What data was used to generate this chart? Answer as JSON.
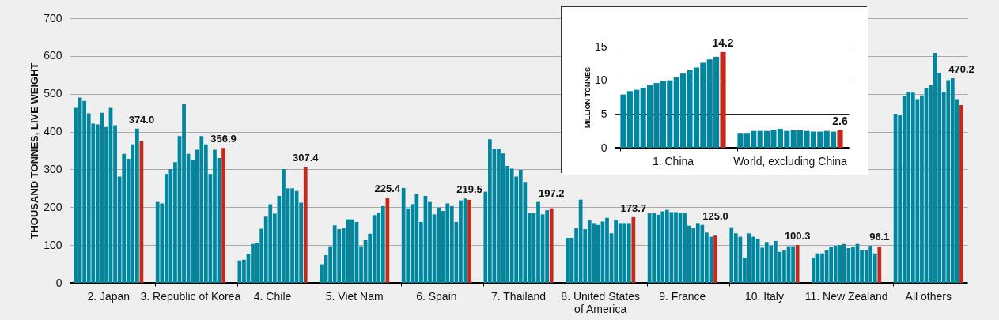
{
  "chart_data": [
    {
      "type": "bar",
      "ylabel": "THOUSAND TONNES, LIVE WEIGHT",
      "categories": [
        "2. Japan",
        "3. Republic of Korea",
        "4. Chile",
        "5. Viet Nam",
        "6. Spain",
        "7. Thailand",
        "8. United States of America",
        "9. France",
        "10. Italy",
        "11. New Zealand",
        "All others"
      ],
      "ylim": [
        0,
        700
      ],
      "yticks": [
        0,
        100,
        200,
        300,
        400,
        500,
        600,
        700
      ],
      "grid": "y",
      "series": [
        {
          "color": "#00869e",
          "values": [
            463,
            214,
            59,
            49,
            251,
            241,
            119,
            184,
            147,
            67,
            447
          ]
        },
        {
          "color": "#00869e",
          "values": [
            490,
            210,
            61,
            73,
            197,
            380,
            119,
            184,
            131,
            78,
            443
          ]
        },
        {
          "color": "#00869e",
          "values": [
            481,
            288,
            77,
            97,
            208,
            354,
            144,
            180,
            122,
            78,
            494
          ]
        },
        {
          "color": "#00869e",
          "values": [
            448,
            301,
            103,
            152,
            234,
            354,
            220,
            189,
            67,
            86,
            505
          ]
        },
        {
          "color": "#00869e",
          "values": [
            421,
            319,
            106,
            142,
            161,
            342,
            142,
            193,
            131,
            96,
            503
          ]
        },
        {
          "color": "#00869e",
          "values": [
            419,
            388,
            143,
            144,
            230,
            309,
            165,
            187,
            122,
            98,
            486
          ]
        },
        {
          "color": "#00869e",
          "values": [
            450,
            472,
            175,
            168,
            214,
            302,
            158,
            187,
            117,
            100,
            496
          ]
        },
        {
          "color": "#00869e",
          "values": [
            412,
            341,
            208,
            168,
            181,
            281,
            153,
            184,
            93,
            103,
            514
          ]
        },
        {
          "color": "#00869e",
          "values": [
            463,
            326,
            183,
            161,
            199,
            299,
            162,
            184,
            108,
            92,
            523
          ]
        },
        {
          "color": "#00869e",
          "values": [
            417,
            352,
            230,
            97,
            190,
            267,
            172,
            151,
            99,
            96,
            608
          ]
        },
        {
          "color": "#00869e",
          "values": [
            281,
            388,
            301,
            113,
            210,
            184,
            131,
            144,
            111,
            103,
            556
          ]
        },
        {
          "color": "#00869e",
          "values": [
            341,
            366,
            250,
            130,
            203,
            184,
            167,
            158,
            82,
            87,
            505
          ]
        },
        {
          "color": "#00869e",
          "values": [
            328,
            288,
            250,
            179,
            161,
            214,
            158,
            153,
            86,
            86,
            536
          ]
        },
        {
          "color": "#00869e",
          "values": [
            366,
            352,
            243,
            186,
            218,
            181,
            158,
            133,
            97,
            98,
            541
          ]
        },
        {
          "color": "#00869e",
          "values": [
            408,
            330,
            212,
            203,
            223,
            192,
            158,
            122,
            97,
            78,
            486
          ]
        },
        {
          "color": "#c4291c",
          "values": [
            374.0,
            356.9,
            307.4,
            225.4,
            219.5,
            197.2,
            173.7,
            125.0,
            100.3,
            96.1,
            470.2
          ],
          "value_labels": [
            "374.0",
            "356.9",
            "307.4",
            "225.4",
            "219.5",
            "197.2",
            "173.7",
            "125.0",
            "100.3",
            "96.1",
            "470.2"
          ]
        }
      ]
    },
    {
      "type": "bar",
      "ylabel": "MILLION TONNES",
      "categories": [
        "1. China",
        "World, excluding China"
      ],
      "ylim": [
        0,
        15
      ],
      "yticks": [
        0,
        5,
        10,
        15
      ],
      "grid": "y",
      "series": [
        {
          "color": "#00869e",
          "values": [
            7.9,
            2.2
          ]
        },
        {
          "color": "#00869e",
          "values": [
            8.4,
            2.2
          ]
        },
        {
          "color": "#00869e",
          "values": [
            8.6,
            2.5
          ]
        },
        {
          "color": "#00869e",
          "values": [
            8.9,
            2.5
          ]
        },
        {
          "color": "#00869e",
          "values": [
            9.3,
            2.5
          ]
        },
        {
          "color": "#00869e",
          "values": [
            9.6,
            2.6
          ]
        },
        {
          "color": "#00869e",
          "values": [
            9.9,
            2.8
          ]
        },
        {
          "color": "#00869e",
          "values": [
            10.0,
            2.5
          ]
        },
        {
          "color": "#00869e",
          "values": [
            10.5,
            2.6
          ]
        },
        {
          "color": "#00869e",
          "values": [
            11.0,
            2.6
          ]
        },
        {
          "color": "#00869e",
          "values": [
            11.5,
            2.5
          ]
        },
        {
          "color": "#00869e",
          "values": [
            11.9,
            2.4
          ]
        },
        {
          "color": "#00869e",
          "values": [
            12.6,
            2.4
          ]
        },
        {
          "color": "#00869e",
          "values": [
            13.1,
            2.5
          ]
        },
        {
          "color": "#00869e",
          "values": [
            13.5,
            2.4
          ]
        },
        {
          "color": "#c4291c",
          "values": [
            14.2,
            2.6
          ],
          "value_labels": [
            "14.2",
            "2.6"
          ]
        }
      ]
    }
  ]
}
